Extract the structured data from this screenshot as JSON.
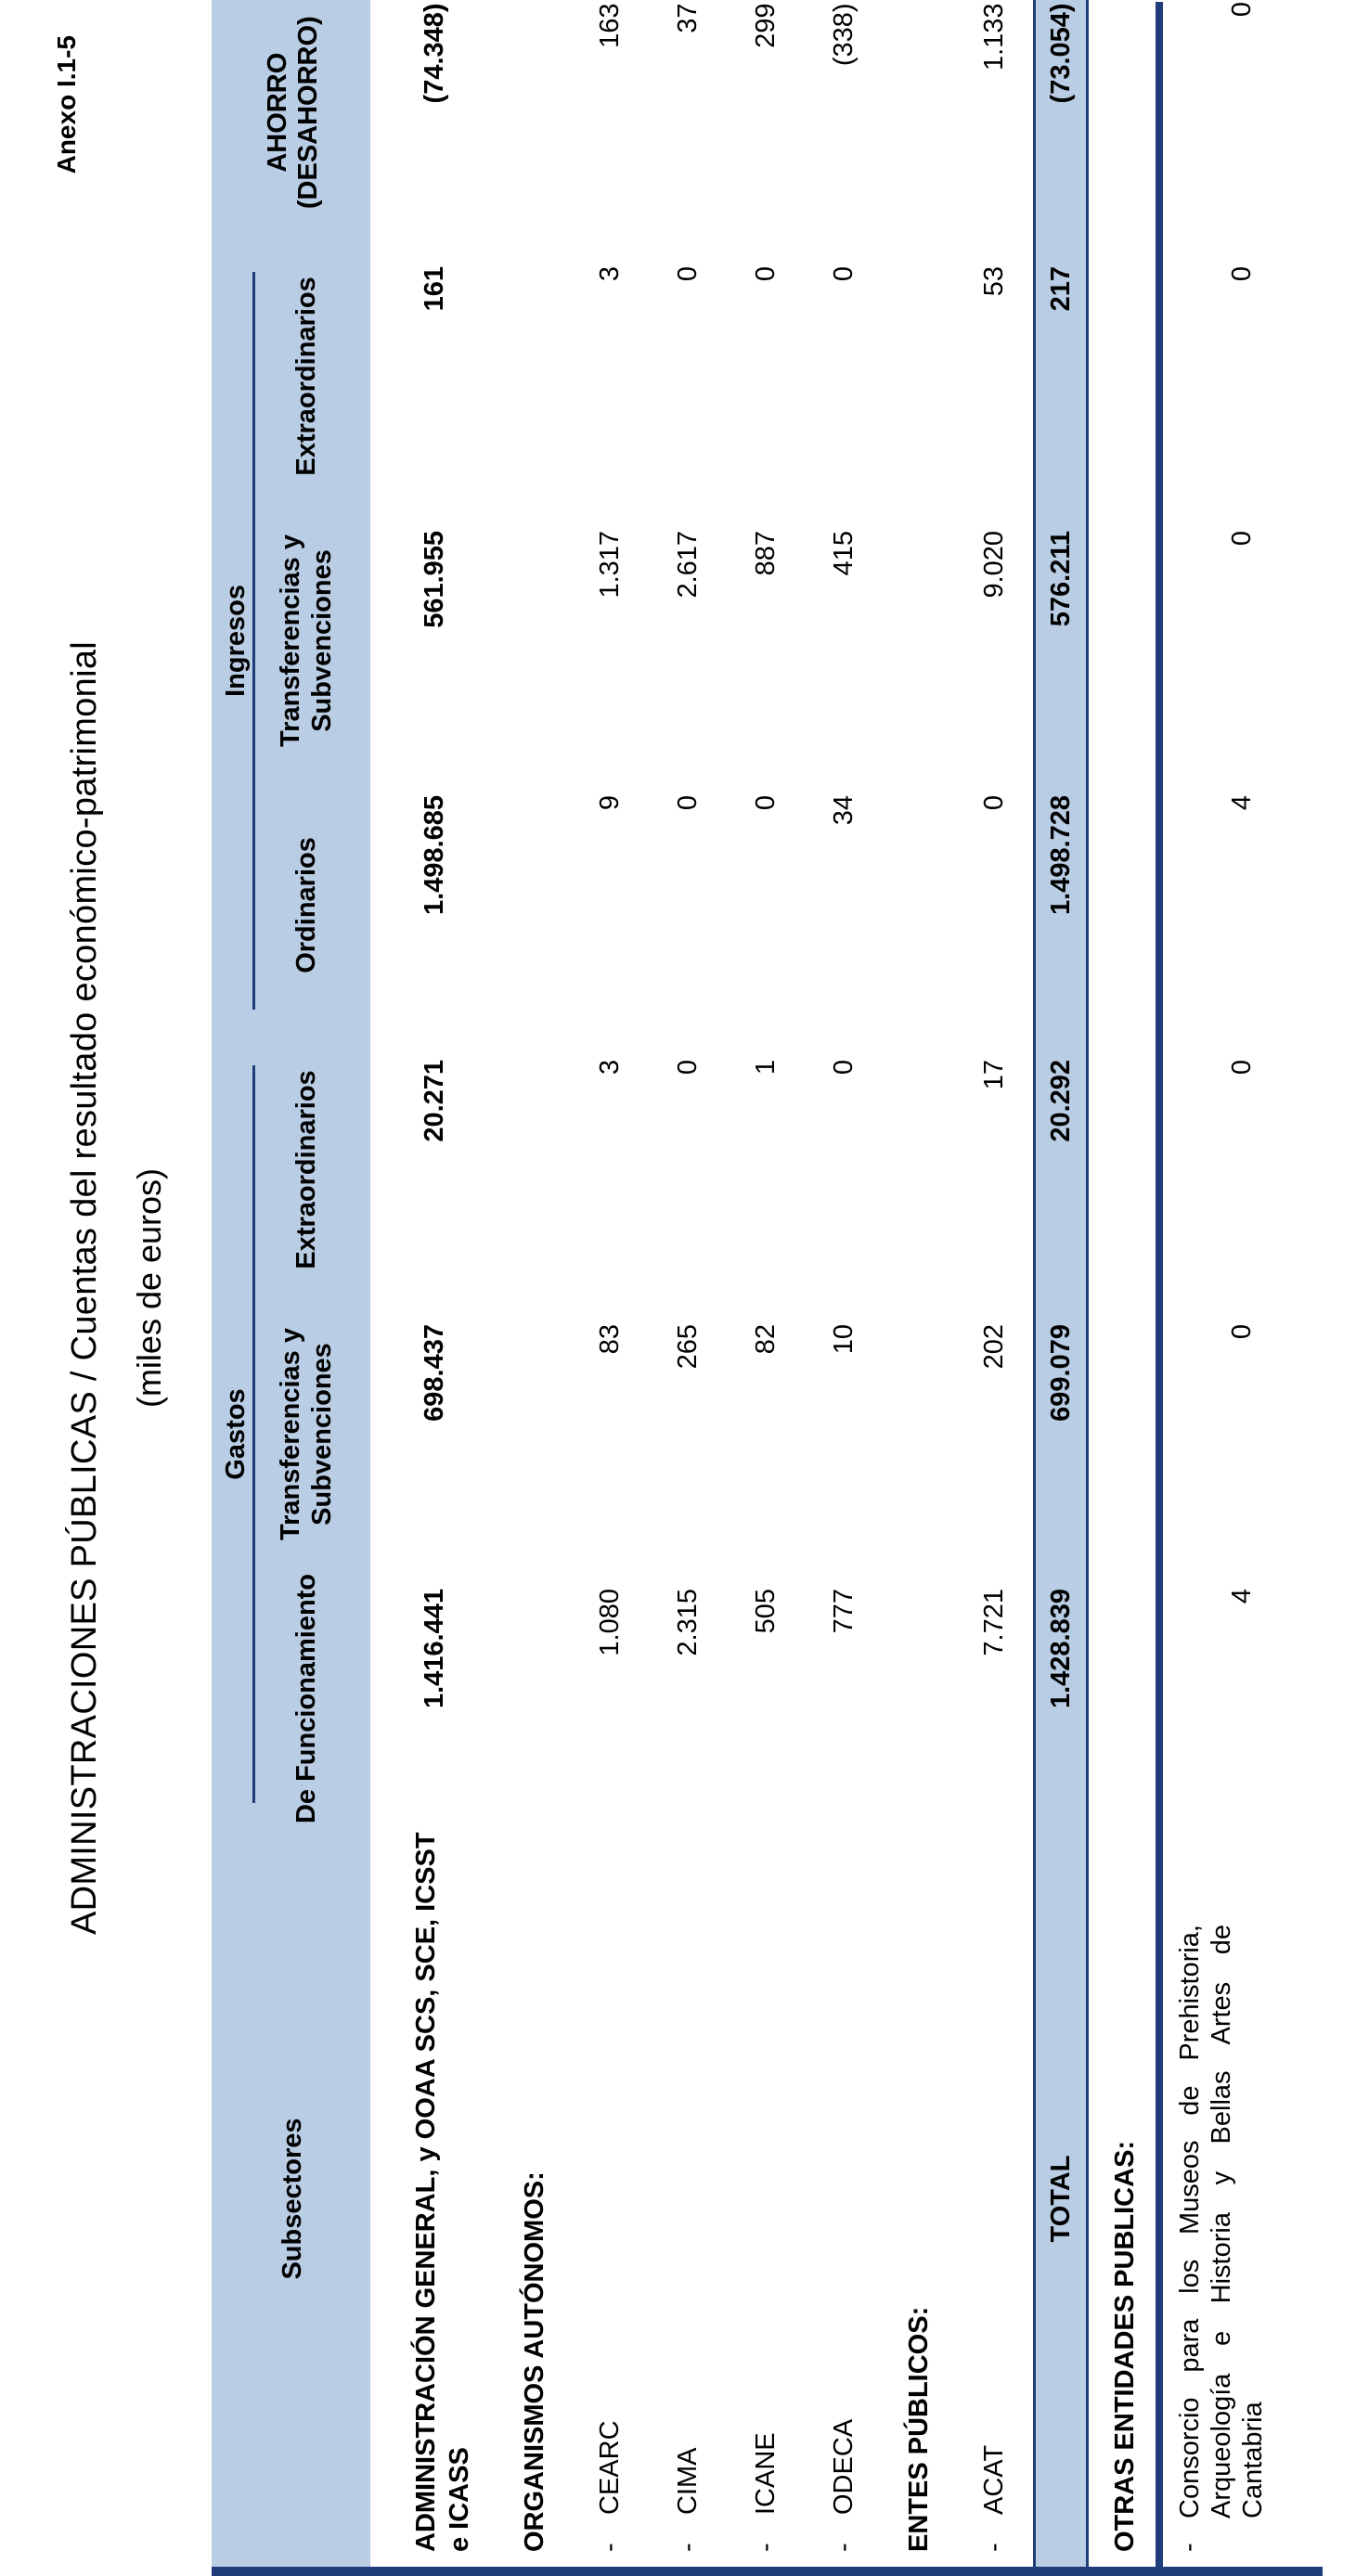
{
  "annex": "Anexo I.1-5",
  "title": "ADMINISTRACIONES PÚBLICAS  /  Cuentas del resultado económico-patrimonial",
  "subtitle": "(miles de euros)",
  "header": {
    "subsectors": "Subsectores",
    "group_gastos": "Gastos",
    "group_ingresos": "Ingresos",
    "cols": [
      "De Funcionamiento",
      "Transferencias y Subvenciones",
      "Extraordinarios",
      "Ordinarios",
      "Transferencias y Subvenciones",
      "Extraordinarios",
      "AHORRO (DESAHORRO)"
    ]
  },
  "rows": {
    "admin_general": {
      "label": "ADMINISTRACIÓN GENERAL, y OOAA SCS, SCE, ICSST e ICASS",
      "values": [
        "1.416.441",
        "698.437",
        "20.271",
        "1.498.685",
        "561.955",
        "161",
        "(74.348)"
      ]
    },
    "org_auto": {
      "label": "ORGANISMOS AUTÓNOMOS:"
    },
    "cearc": {
      "dash": "-",
      "label": "CEARC",
      "values": [
        "1.080",
        "83",
        "3",
        "9",
        "1.317",
        "3",
        "163"
      ]
    },
    "cima": {
      "dash": "-",
      "label": "CIMA",
      "values": [
        "2.315",
        "265",
        "0",
        "0",
        "2.617",
        "0",
        "37"
      ]
    },
    "icane": {
      "dash": "-",
      "label": "ICANE",
      "values": [
        "505",
        "82",
        "1",
        "0",
        "887",
        "0",
        "299"
      ]
    },
    "odeca": {
      "dash": "-",
      "label": "ODECA",
      "values": [
        "777",
        "10",
        "0",
        "34",
        "415",
        "0",
        "(338)"
      ]
    },
    "entes": {
      "label": "ENTES PÚBLICOS:"
    },
    "acat": {
      "dash": "-",
      "label": "ACAT",
      "values": [
        "7.721",
        "202",
        "17",
        "0",
        "9.020",
        "53",
        "1.133"
      ]
    },
    "total": {
      "label": "TOTAL",
      "values": [
        "1.428.839",
        "699.079",
        "20.292",
        "1.498.728",
        "576.211",
        "217",
        "(73.054)"
      ]
    },
    "otras": {
      "label": "OTRAS ENTIDADES PUBLICAS:"
    },
    "consorcio": {
      "dash": "-",
      "label": "Consorcio para los Museos de Prehistoria, Arqueología e Historia y Bellas Artes de Cantabria",
      "values": [
        "4",
        "0",
        "0",
        "4",
        "0",
        "0",
        "0"
      ]
    }
  },
  "colors": {
    "header_bg": "#b9cde4",
    "rule": "#1f3d7a"
  }
}
